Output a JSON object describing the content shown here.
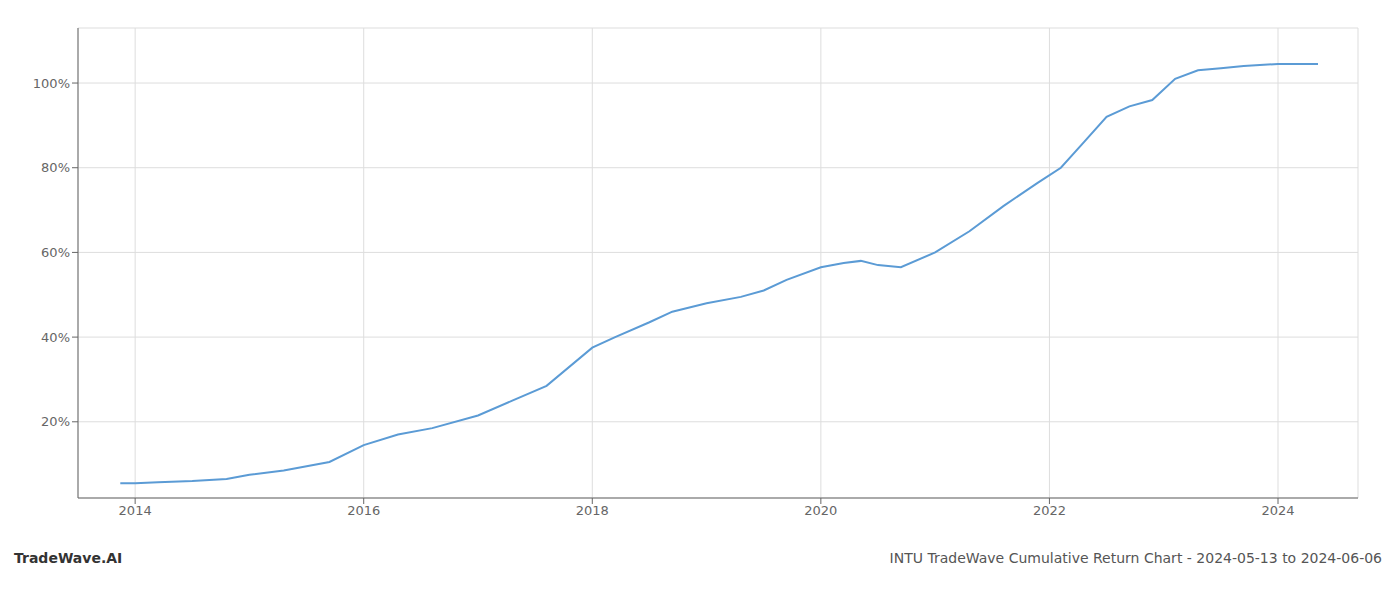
{
  "chart_data": {
    "type": "line",
    "title": "INTU TradeWave Cumulative Return Chart - 2024-05-13 to 2024-06-06",
    "annotations": [
      "TradeWave.AI"
    ],
    "x": [
      2013.87,
      2014.0,
      2014.2,
      2014.5,
      2014.8,
      2015.0,
      2015.3,
      2015.7,
      2016.0,
      2016.3,
      2016.6,
      2017.0,
      2017.3,
      2017.6,
      2018.0,
      2018.2,
      2018.5,
      2018.7,
      2019.0,
      2019.3,
      2019.5,
      2019.7,
      2020.0,
      2020.2,
      2020.35,
      2020.5,
      2020.7,
      2021.0,
      2021.3,
      2021.6,
      2021.9,
      2022.1,
      2022.3,
      2022.5,
      2022.7,
      2022.9,
      2023.1,
      2023.3,
      2023.5,
      2023.7,
      2024.0,
      2024.35
    ],
    "values": [
      5.5,
      5.5,
      5.7,
      6.0,
      6.5,
      7.5,
      8.5,
      10.5,
      14.5,
      17.0,
      18.5,
      21.5,
      25.0,
      28.5,
      37.5,
      40.0,
      43.5,
      46.0,
      48.0,
      49.5,
      51.0,
      53.5,
      56.5,
      57.5,
      58.0,
      57.0,
      56.5,
      60.0,
      65.0,
      71.0,
      76.5,
      80.0,
      86.0,
      92.0,
      94.5,
      96.0,
      101.0,
      103.0,
      103.5,
      104.0,
      104.5,
      104.5
    ],
    "color": "#5b9bd5",
    "xlim": [
      2013.5,
      2024.7
    ],
    "ylim": [
      2,
      113
    ],
    "xticks": [
      2014,
      2016,
      2018,
      2020,
      2022,
      2024
    ],
    "yticks": [
      {
        "value": 20,
        "label": "20%"
      },
      {
        "value": 40,
        "label": "40%"
      },
      {
        "value": 60,
        "label": "60%"
      },
      {
        "value": 80,
        "label": "80%"
      },
      {
        "value": 100,
        "label": "100%"
      }
    ],
    "grid": true
  }
}
